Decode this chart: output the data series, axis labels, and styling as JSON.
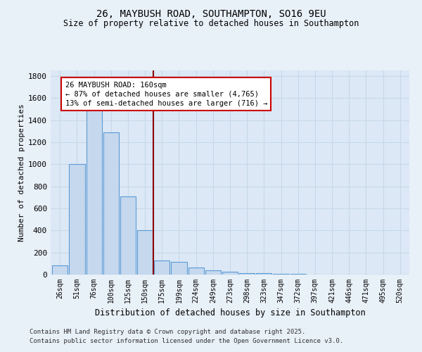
{
  "title1": "26, MAYBUSH ROAD, SOUTHAMPTON, SO16 9EU",
  "title2": "Size of property relative to detached houses in Southampton",
  "xlabel": "Distribution of detached houses by size in Southampton",
  "ylabel": "Number of detached properties",
  "categories": [
    "26sqm",
    "51sqm",
    "76sqm",
    "100sqm",
    "125sqm",
    "150sqm",
    "175sqm",
    "199sqm",
    "224sqm",
    "249sqm",
    "273sqm",
    "298sqm",
    "323sqm",
    "347sqm",
    "372sqm",
    "397sqm",
    "421sqm",
    "446sqm",
    "471sqm",
    "495sqm",
    "520sqm"
  ],
  "values": [
    85,
    1000,
    1500,
    1290,
    710,
    400,
    130,
    115,
    65,
    40,
    25,
    15,
    10,
    5,
    5,
    0,
    0,
    0,
    0,
    0,
    0
  ],
  "bar_color": "#c5d8ee",
  "bar_edge_color": "#5b9bd5",
  "vline_pos": 6.5,
  "vline_color": "#8b0000",
  "ann_line1": "26 MAYBUSH ROAD: 160sqm",
  "ann_line2": "← 87% of detached houses are smaller (4,765)",
  "ann_line3": "13% of semi-detached houses are larger (716) →",
  "annotation_box_color": "#ffffff",
  "annotation_box_edge": "#cc0000",
  "ylim": [
    0,
    1850
  ],
  "yticks": [
    0,
    200,
    400,
    600,
    800,
    1000,
    1200,
    1400,
    1600,
    1800
  ],
  "bg_color": "#e8f0f8",
  "plot_bg_color": "#dce8f5",
  "grid_color": "#c8d8e8",
  "footnote1": "Contains HM Land Registry data © Crown copyright and database right 2025.",
  "footnote2": "Contains public sector information licensed under the Open Government Licence v3.0."
}
